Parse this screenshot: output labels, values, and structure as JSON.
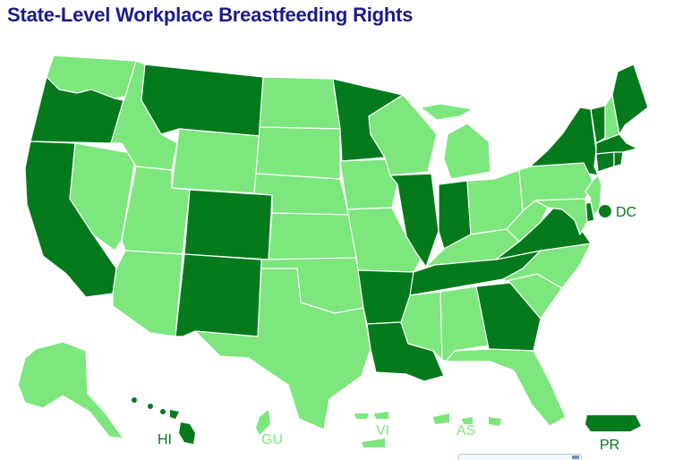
{
  "title": "State-Level Workplace Breastfeeding Rights",
  "colors": {
    "has_protection": "#057a1d",
    "no_protection": "#7de67d",
    "border": "#ffffff",
    "title": "#1a1a8c"
  },
  "territory_labels": {
    "dc": "DC",
    "hi": "HI",
    "gu": "GU",
    "vi": "VI",
    "as": "AS",
    "pr": "PR"
  },
  "states": {
    "WA": "no_protection",
    "OR": "has_protection",
    "CA": "has_protection",
    "NV": "no_protection",
    "ID": "no_protection",
    "MT": "has_protection",
    "WY": "no_protection",
    "UT": "no_protection",
    "AZ": "no_protection",
    "CO": "has_protection",
    "NM": "has_protection",
    "ND": "no_protection",
    "SD": "no_protection",
    "NE": "no_protection",
    "KS": "no_protection",
    "OK": "no_protection",
    "TX": "no_protection",
    "MN": "has_protection",
    "IA": "no_protection",
    "MO": "no_protection",
    "AR": "has_protection",
    "LA": "has_protection",
    "WI": "no_protection",
    "IL": "has_protection",
    "MI": "no_protection",
    "IN": "has_protection",
    "OH": "no_protection",
    "KY": "no_protection",
    "TN": "has_protection",
    "MS": "no_protection",
    "AL": "no_protection",
    "GA": "has_protection",
    "FL": "no_protection",
    "SC": "no_protection",
    "NC": "no_protection",
    "VA": "has_protection",
    "WV": "no_protection",
    "PA": "no_protection",
    "NY": "has_protection",
    "VT": "has_protection",
    "NH": "no_protection",
    "ME": "has_protection",
    "MA": "has_protection",
    "CT": "has_protection",
    "RI": "has_protection",
    "NJ": "no_protection",
    "DE": "has_protection",
    "MD": "no_protection",
    "DC": "has_protection",
    "AK": "no_protection",
    "HI": "has_protection",
    "GU": "no_protection",
    "VI": "no_protection",
    "AS": "no_protection",
    "PR": "has_protection"
  }
}
